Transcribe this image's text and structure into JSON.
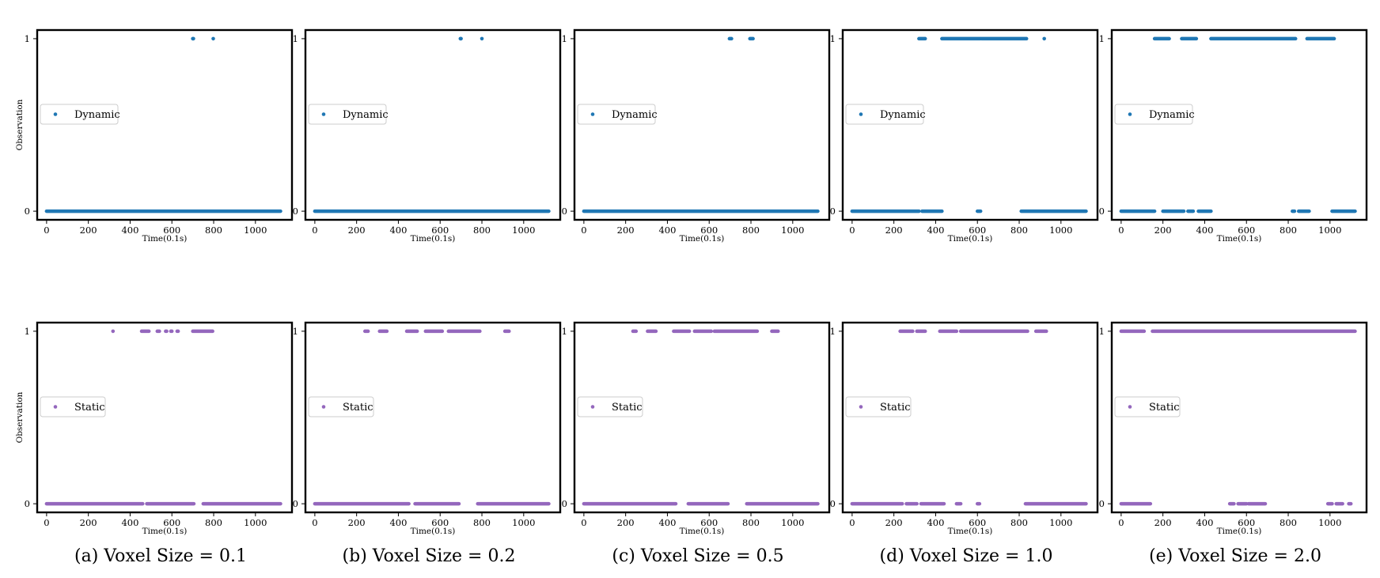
{
  "captions": [
    "(a) Voxel Size = 0.1",
    "(b) Voxel Size = 0.2",
    "(c) Voxel Size = 0.5",
    "(d) Voxel Size = 1.0",
    "(e) Voxel Size = 2.0"
  ],
  "colors": {
    "dynamic": "#1f77b4",
    "static": "#9467bd",
    "axes": "#000000"
  },
  "chart_data": [
    {
      "type": "scatter",
      "row": "dynamic",
      "panel": "(a) Voxel Size = 0.1",
      "xlabel": "Time(0.1s)",
      "ylabel": "Observation",
      "xticks": [
        0,
        200,
        400,
        600,
        800,
        1000
      ],
      "yticks": [
        0,
        1
      ],
      "xlim": [
        -45,
        1175
      ],
      "ylim": [
        -0.05,
        1.05
      ],
      "legend": "Dynamic",
      "legend_position": "center-left",
      "series": [
        {
          "name": "Dynamic",
          "ones": [
            [
              700,
              700
            ],
            [
              703,
              703
            ],
            [
              798,
              798
            ]
          ],
          "zeros": [
            [
              0,
              1120
            ]
          ]
        }
      ]
    },
    {
      "type": "scatter",
      "row": "dynamic",
      "panel": "(b) Voxel Size = 0.2",
      "xlabel": "Time(0.1s)",
      "ylabel": "",
      "xticks": [
        0,
        200,
        400,
        600,
        800,
        1000
      ],
      "yticks": [
        0,
        1
      ],
      "xlim": [
        -45,
        1175
      ],
      "ylim": [
        -0.05,
        1.05
      ],
      "legend": "Dynamic",
      "legend_position": "center-left",
      "series": [
        {
          "name": "Dynamic",
          "ones": [
            [
              697,
              697
            ],
            [
              700,
              700
            ],
            [
              800,
              800
            ]
          ],
          "zeros": [
            [
              0,
              1120
            ]
          ]
        }
      ]
    },
    {
      "type": "scatter",
      "row": "dynamic",
      "panel": "(c) Voxel Size = 0.5",
      "xlabel": "Time(0.1s)",
      "ylabel": "",
      "xticks": [
        0,
        200,
        400,
        600,
        800,
        1000
      ],
      "yticks": [
        0,
        1
      ],
      "xlim": [
        -45,
        1175
      ],
      "ylim": [
        -0.05,
        1.05
      ],
      "legend": "Dynamic",
      "legend_position": "center-left",
      "series": [
        {
          "name": "Dynamic",
          "ones": [
            [
              697,
              707
            ],
            [
              795,
              810
            ]
          ],
          "zeros": [
            [
              0,
              1120
            ]
          ]
        }
      ]
    },
    {
      "type": "scatter",
      "row": "dynamic",
      "panel": "(d) Voxel Size = 1.0",
      "xlabel": "Time(0.1s)",
      "ylabel": "",
      "xticks": [
        0,
        200,
        400,
        600,
        800,
        1000
      ],
      "yticks": [
        0,
        1
      ],
      "xlim": [
        -45,
        1175
      ],
      "ylim": [
        -0.05,
        1.05
      ],
      "legend": "Dynamic",
      "legend_position": "center-left",
      "series": [
        {
          "name": "Dynamic",
          "ones": [
            [
              320,
              350
            ],
            [
              430,
              615
            ],
            [
              620,
              835
            ],
            [
              920,
              920
            ]
          ],
          "zeros": [
            [
              0,
              320
            ],
            [
              335,
              430
            ],
            [
              600,
              615
            ],
            [
              810,
              1120
            ]
          ]
        }
      ]
    },
    {
      "type": "scatter",
      "row": "dynamic",
      "panel": "(e) Voxel Size = 2.0",
      "xlabel": "Time(0.1s)",
      "ylabel": "",
      "xticks": [
        0,
        200,
        400,
        600,
        800,
        1000
      ],
      "yticks": [
        0,
        1
      ],
      "xlim": [
        -45,
        1175
      ],
      "ylim": [
        -0.05,
        1.05
      ],
      "legend": "Dynamic",
      "legend_position": "center-left",
      "series": [
        {
          "name": "Dynamic",
          "ones": [
            [
              160,
              230
            ],
            [
              290,
              360
            ],
            [
              430,
              835
            ],
            [
              890,
              1020
            ]
          ],
          "zeros": [
            [
              0,
              160
            ],
            [
              200,
              300
            ],
            [
              320,
              345
            ],
            [
              370,
              430
            ],
            [
              820,
              830
            ],
            [
              850,
              900
            ],
            [
              1010,
              1120
            ]
          ]
        }
      ]
    },
    {
      "type": "scatter",
      "row": "static",
      "panel": "(a) Voxel Size = 0.1",
      "xlabel": "Time(0.1s)",
      "ylabel": "Observation",
      "xticks": [
        0,
        200,
        400,
        600,
        800,
        1000
      ],
      "yticks": [
        0,
        1
      ],
      "xlim": [
        -45,
        1175
      ],
      "ylim": [
        -0.05,
        1.05
      ],
      "legend": "Static",
      "legend_position": "center-left",
      "series": [
        {
          "name": "Static",
          "ones": [
            [
              318,
              318
            ],
            [
              455,
              490
            ],
            [
              530,
              540
            ],
            [
              570,
              575
            ],
            [
              595,
              600
            ],
            [
              625,
              630
            ],
            [
              700,
              795
            ]
          ],
          "zeros": [
            [
              0,
              460
            ],
            [
              480,
              705
            ],
            [
              750,
              1120
            ]
          ]
        }
      ]
    },
    {
      "type": "scatter",
      "row": "static",
      "panel": "(b) Voxel Size = 0.2",
      "xlabel": "Time(0.1s)",
      "ylabel": "",
      "xticks": [
        0,
        200,
        400,
        600,
        800,
        1000
      ],
      "yticks": [
        0,
        1
      ],
      "xlim": [
        -45,
        1175
      ],
      "ylim": [
        -0.05,
        1.05
      ],
      "legend": "Static",
      "legend_position": "center-left",
      "series": [
        {
          "name": "Static",
          "ones": [
            [
              240,
              255
            ],
            [
              310,
              345
            ],
            [
              440,
              490
            ],
            [
              530,
              610
            ],
            [
              640,
              790
            ],
            [
              910,
              930
            ]
          ],
          "zeros": [
            [
              0,
              450
            ],
            [
              480,
              690
            ],
            [
              780,
              1120
            ]
          ]
        }
      ]
    },
    {
      "type": "scatter",
      "row": "static",
      "panel": "(c) Voxel Size = 0.5",
      "xlabel": "Time(0.1s)",
      "ylabel": "",
      "xticks": [
        0,
        200,
        400,
        600,
        800,
        1000
      ],
      "yticks": [
        0,
        1
      ],
      "xlim": [
        -45,
        1175
      ],
      "ylim": [
        -0.05,
        1.05
      ],
      "legend": "Static",
      "legend_position": "center-left",
      "series": [
        {
          "name": "Static",
          "ones": [
            [
              235,
              250
            ],
            [
              305,
              345
            ],
            [
              430,
              505
            ],
            [
              530,
              610
            ],
            [
              625,
              830
            ],
            [
              900,
              930
            ]
          ],
          "zeros": [
            [
              0,
              440
            ],
            [
              500,
              690
            ],
            [
              780,
              1120
            ]
          ]
        }
      ]
    },
    {
      "type": "scatter",
      "row": "static",
      "panel": "(d) Voxel Size = 1.0",
      "xlabel": "Time(0.1s)",
      "ylabel": "",
      "xticks": [
        0,
        200,
        400,
        600,
        800,
        1000
      ],
      "yticks": [
        0,
        1
      ],
      "xlim": [
        -45,
        1175
      ],
      "ylim": [
        -0.05,
        1.05
      ],
      "legend": "Static",
      "legend_position": "center-left",
      "series": [
        {
          "name": "Static",
          "ones": [
            [
              230,
              290
            ],
            [
              310,
              350
            ],
            [
              420,
              500
            ],
            [
              520,
              840
            ],
            [
              880,
              930
            ]
          ],
          "zeros": [
            [
              0,
              240
            ],
            [
              260,
              310
            ],
            [
              330,
              440
            ],
            [
              500,
              520
            ],
            [
              600,
              610
            ],
            [
              830,
              1120
            ]
          ]
        }
      ]
    },
    {
      "type": "scatter",
      "row": "static",
      "panel": "(e) Voxel Size = 2.0",
      "xlabel": "Time(0.1s)",
      "ylabel": "",
      "xticks": [
        0,
        200,
        400,
        600,
        800,
        1000
      ],
      "yticks": [
        0,
        1
      ],
      "xlim": [
        -45,
        1175
      ],
      "ylim": [
        -0.05,
        1.05
      ],
      "legend": "Static",
      "legend_position": "center-left",
      "series": [
        {
          "name": "Static",
          "ones": [
            [
              0,
              110
            ],
            [
              150,
              1120
            ]
          ],
          "zeros": [
            [
              0,
              140
            ],
            [
              520,
              540
            ],
            [
              560,
              600
            ],
            [
              610,
              690
            ],
            [
              990,
              1010
            ],
            [
              1030,
              1060
            ],
            [
              1090,
              1100
            ]
          ]
        }
      ]
    }
  ]
}
